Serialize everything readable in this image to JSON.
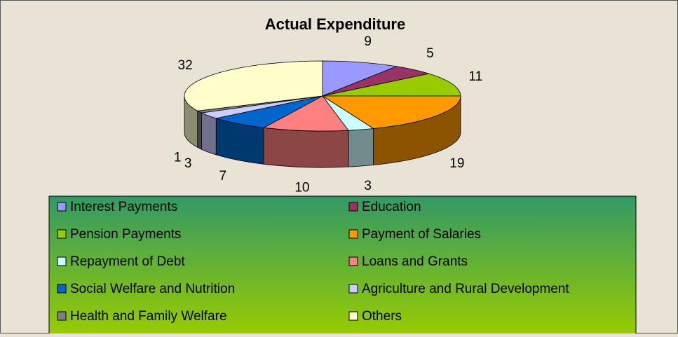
{
  "chart_data": {
    "type": "pie",
    "title": "Actual Expenditure",
    "categories": [
      "Interest Payments",
      "Education",
      "Pension Payments",
      "Payment of Salaries",
      "Repayment of Debt",
      "Loans and Grants",
      "Social Welfare and Nutrition",
      "Agriculture and Rural Development",
      "Health and Family Welfare",
      "Others"
    ],
    "values": [
      9,
      5,
      11,
      19,
      3,
      10,
      7,
      3,
      1,
      32
    ],
    "colors": [
      "#9999ff",
      "#993366",
      "#99cc00",
      "#ff9900",
      "#ccffff",
      "#ff8080",
      "#0066cc",
      "#ccccff",
      "#808080",
      "#ffffcc"
    ],
    "legend": "bottom"
  }
}
